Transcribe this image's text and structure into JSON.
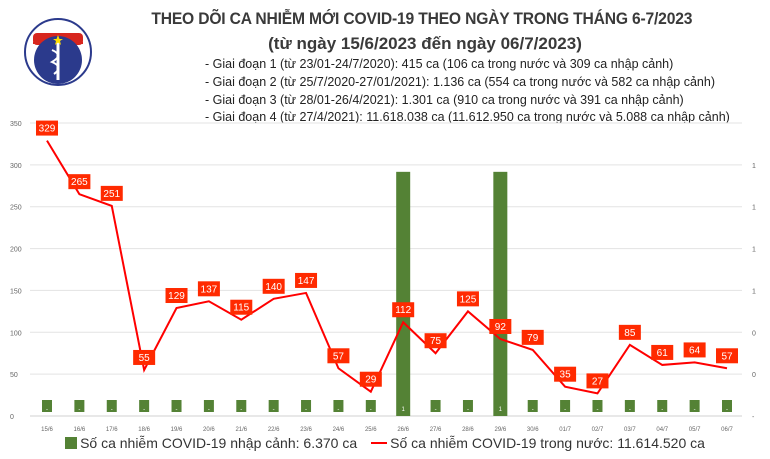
{
  "logo": {
    "text_top": "BỘ Y TẾ",
    "text_bottom": "MINISTRY OF HEALTH"
  },
  "title": "THEO DÕI CA NHIỄM MỚI COVID-19 THEO NGÀY TRONG THÁNG 6-7/2023",
  "subtitle": "(từ ngày 15/6/2023 đến ngày 06/7/2023)",
  "notes": [
    "- Giai đoạn 1 (từ 23/01-24/7/2020): 415 ca (106 ca trong nước và 309 ca nhập cảnh)",
    "- Giai đoạn 2 (từ 25/7/2020-27/01/2021): 1.136 ca (554 ca trong nước và 582 ca nhập cảnh)",
    "- Giai đoạn 3 (từ 28/01-26/4/2021): 1.301 ca (910 ca trong nước và 391 ca nhập cảnh)",
    "- Giai đoạn 4 (từ 27/4/2021): 11.618.038 ca (11.612.950 ca trong nước và 5.088 ca nhập cảnh)"
  ],
  "chart_data": {
    "type": "bar+line",
    "categories": [
      "15/6",
      "16/6",
      "17/6",
      "18/6",
      "19/6",
      "20/6",
      "21/6",
      "22/6",
      "23/6",
      "24/6",
      "25/6",
      "26/6",
      "27/6",
      "28/6",
      "29/6",
      "30/6",
      "01/7",
      "02/7",
      "03/7",
      "04/7",
      "05/7",
      "06/7"
    ],
    "series": [
      {
        "name": "Số ca nhiễm COVID-19 nhập cảnh: 6.370 ca",
        "type": "bar",
        "axis": "right",
        "color": "#548235",
        "values": [
          0,
          0,
          0,
          0,
          0,
          0,
          0,
          0,
          0,
          0,
          0,
          1,
          0,
          0,
          1,
          0,
          0,
          0,
          0,
          0,
          0,
          0
        ],
        "labels": [
          "-",
          "-",
          "-",
          "-",
          "-",
          "-",
          "-",
          "-",
          "-",
          "-",
          "-",
          "1",
          "-",
          "-",
          "1",
          "-",
          "-",
          "-",
          "-",
          "-",
          "-",
          "-"
        ]
      },
      {
        "name": "Số ca nhiễm COVID-19 trong nước: 11.614.520 ca",
        "type": "line",
        "axis": "left",
        "color": "#ff0000",
        "values": [
          329,
          265,
          251,
          55,
          129,
          137,
          115,
          140,
          147,
          57,
          29,
          112,
          75,
          125,
          92,
          79,
          35,
          27,
          85,
          61,
          64,
          57
        ]
      }
    ],
    "left_axis": {
      "min": 0,
      "max": 350,
      "ticks": [
        "0",
        "50",
        "100",
        "150",
        "200",
        "250",
        "300",
        "350"
      ]
    },
    "right_axis": {
      "min": 0,
      "max": 1.2,
      "ticks": [
        "-",
        "0",
        "0",
        "1",
        "1",
        "1",
        "1"
      ]
    },
    "grid": true,
    "legend": "bottom"
  }
}
